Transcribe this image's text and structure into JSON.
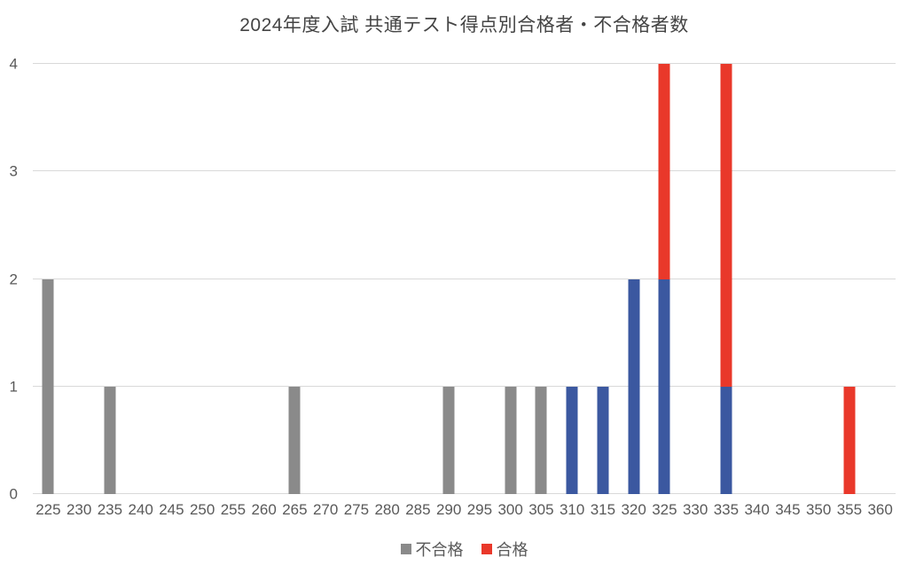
{
  "chart_data": {
    "type": "bar",
    "stacked": true,
    "title": "2024年度入試 共通テスト得点別合格者・不合格者数",
    "xlabel": "",
    "ylabel": "",
    "categories": [
      225,
      230,
      235,
      240,
      245,
      250,
      255,
      260,
      265,
      270,
      275,
      280,
      285,
      290,
      295,
      300,
      305,
      310,
      315,
      320,
      325,
      330,
      335,
      340,
      345,
      350,
      355,
      360
    ],
    "series": [
      {
        "name": "不合格",
        "color": "#8a8a8a",
        "in_legend": true,
        "values": [
          2,
          0,
          1,
          0,
          0,
          0,
          0,
          0,
          1,
          0,
          0,
          0,
          0,
          1,
          0,
          1,
          1,
          0,
          0,
          0,
          0,
          0,
          0,
          0,
          0,
          0,
          0,
          0
        ]
      },
      {
        "name": "",
        "color": "#3b58a0",
        "in_legend": false,
        "values": [
          0,
          0,
          0,
          0,
          0,
          0,
          0,
          0,
          0,
          0,
          0,
          0,
          0,
          0,
          0,
          0,
          0,
          1,
          1,
          2,
          2,
          0,
          1,
          0,
          0,
          0,
          0,
          0
        ]
      },
      {
        "name": "合格",
        "color": "#e9382a",
        "in_legend": true,
        "values": [
          0,
          0,
          0,
          0,
          0,
          0,
          0,
          0,
          0,
          0,
          0,
          0,
          0,
          0,
          0,
          0,
          0,
          0,
          0,
          0,
          2,
          0,
          3,
          0,
          0,
          0,
          1,
          0
        ]
      }
    ],
    "ylim": [
      0,
      4
    ],
    "yticks": [
      0,
      1,
      2,
      3,
      4
    ],
    "grid": true,
    "legend_position": "bottom",
    "colors": {
      "grid": "#d9d9d9",
      "tick_text": "#595959",
      "title_text": "#444444",
      "background": "#ffffff"
    }
  }
}
